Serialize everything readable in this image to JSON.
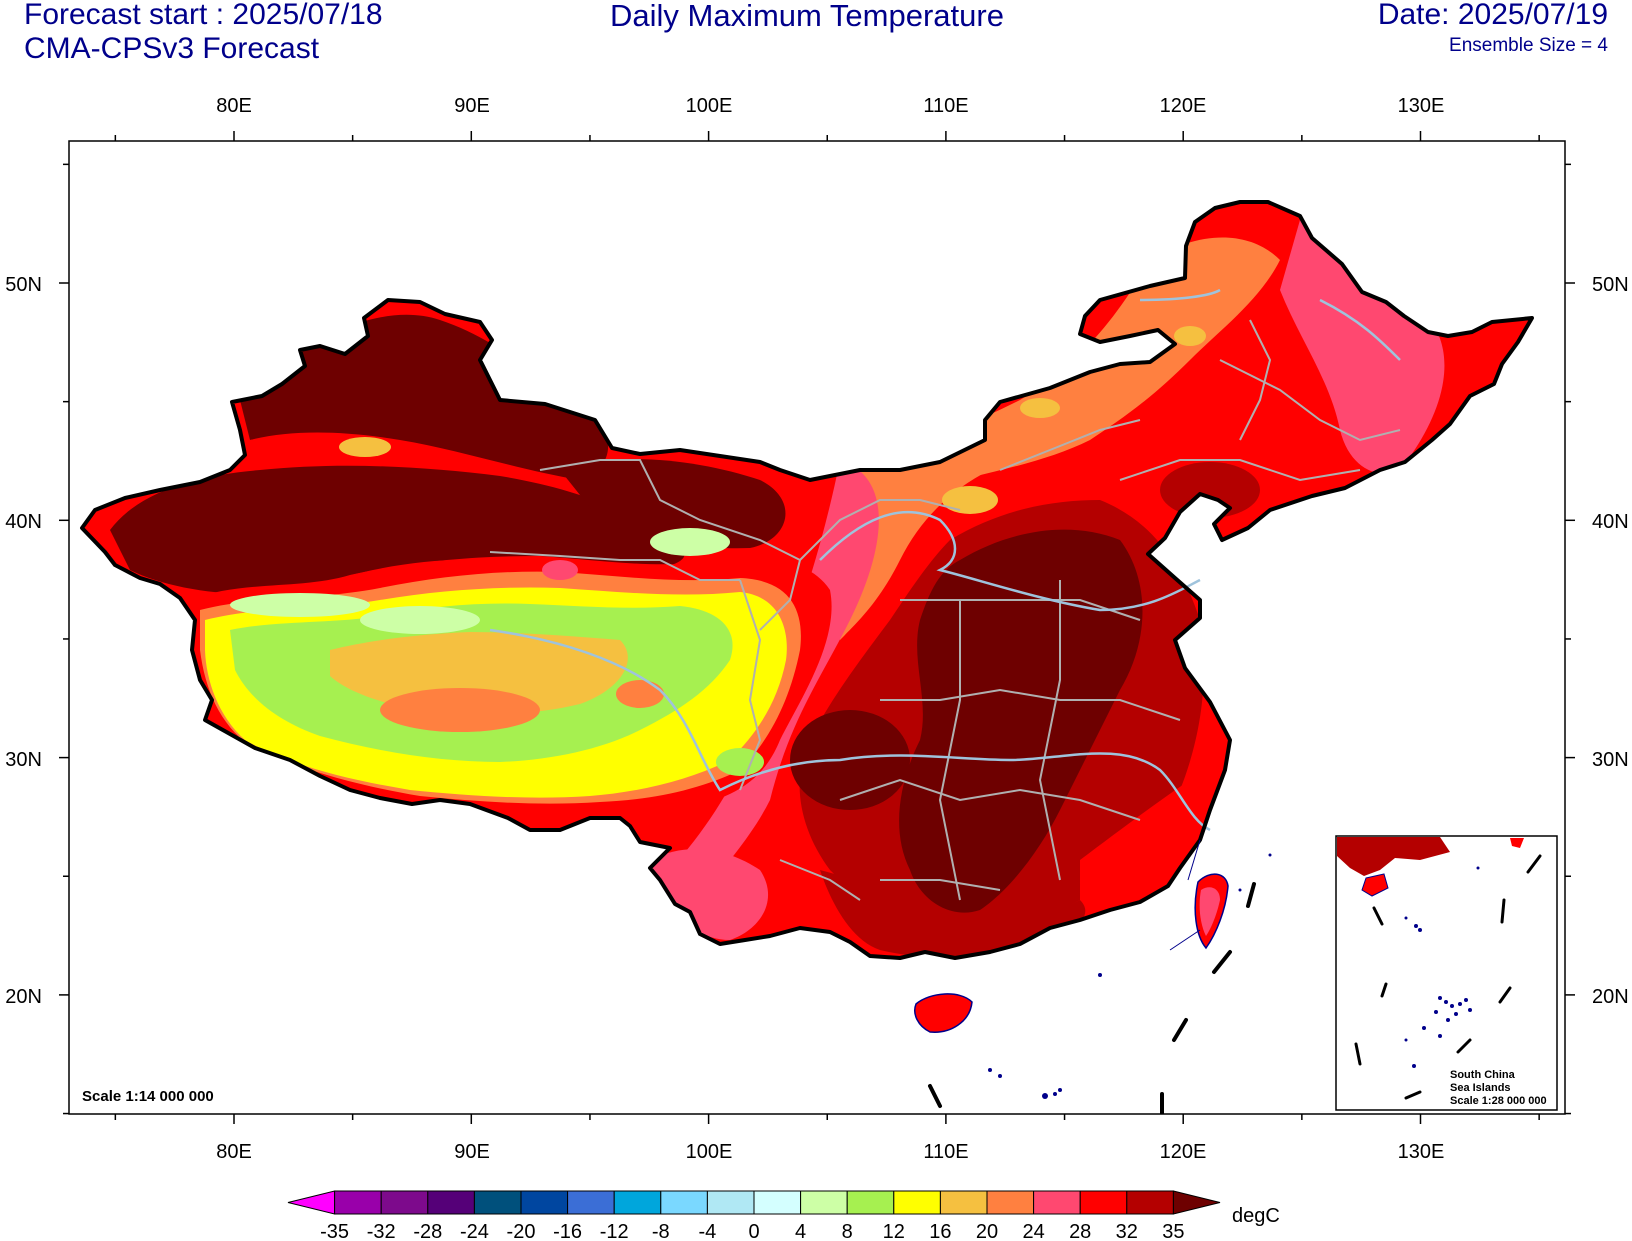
{
  "header": {
    "forecast_start": "Forecast start : 2025/07/18",
    "model": "CMA-CPSv3 Forecast",
    "title": "Daily Maximum Temperature",
    "date": "Date: 2025/07/19",
    "ensemble": "Ensemble Size = 4"
  },
  "map": {
    "lon_ticks": [
      "80E",
      "90E",
      "100E",
      "110E",
      "120E",
      "130E"
    ],
    "lat_ticks": [
      "50N",
      "40N",
      "30N",
      "20N"
    ],
    "scale_label": "Scale 1:14 000 000",
    "inset_labels": [
      "South China",
      "Sea Islands",
      "Scale 1:28 000 000"
    ],
    "colors": {
      "boundary": "#000000",
      "province_lines": "#b0b0b0",
      "rivers": "#9fc3dc",
      "coast": "#00008b"
    }
  },
  "colorbar": {
    "unit": "degC",
    "labels": [
      "-35",
      "-32",
      "-28",
      "-24",
      "-20",
      "-16",
      "-12",
      "-8",
      "-4",
      "0",
      "4",
      "8",
      "12",
      "16",
      "20",
      "24",
      "28",
      "32",
      "35"
    ],
    "colors": [
      "#ff00ff",
      "#9900aa",
      "#7d0a8c",
      "#550078",
      "#00507c",
      "#0046a0",
      "#3b6ed6",
      "#00a6dc",
      "#7ad8ff",
      "#b0e8f4",
      "#d4ffff",
      "#cdffa6",
      "#a6f050",
      "#ffff00",
      "#f5c040",
      "#ff8040",
      "#ff4870",
      "#ff0000",
      "#b40000",
      "#6e0000"
    ]
  }
}
